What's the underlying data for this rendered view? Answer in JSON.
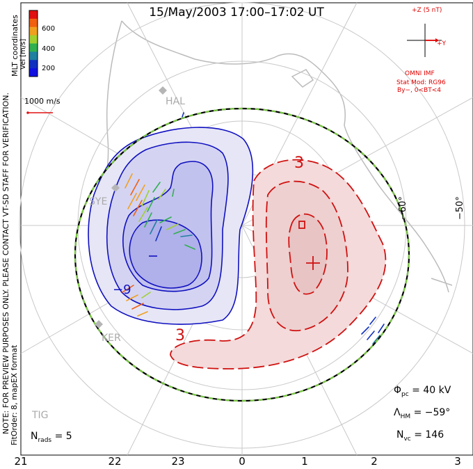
{
  "title": "15/May/2003 17:00–17:02 UT",
  "side_notes": {
    "preview": "NOTE: FOR PREVIEW PURPOSES ONLY. PLEASE CONTACT VT-SD STAFF FOR VERIFICATION.",
    "fitorder": "FitOrder: 8, mapEX format",
    "coords": "MLT coordinates"
  },
  "velocity_scale": {
    "label": "Vel [m/s]",
    "ticks": [
      "600",
      "400",
      "200"
    ],
    "colors": [
      "#e01010",
      "#f06010",
      "#f0a020",
      "#a0d030",
      "#30b050",
      "#2080a0",
      "#1030c0",
      "#1010e0"
    ],
    "reference": "1000 m/s"
  },
  "imf": {
    "z_label": "+Z (5 nT)",
    "y_label": "+Y",
    "source": "OMNI IMF",
    "model": "Stat Mod: RG96",
    "condition": "By−, 0<BT<4"
  },
  "stations": [
    "HAL",
    "SYE",
    "KER",
    "TIG"
  ],
  "latitude_labels": [
    "−60°",
    "−50°"
  ],
  "contour_labels": {
    "neg": "−9",
    "pos_top": "3",
    "pos_bottom": "3"
  },
  "stats": {
    "phi_pc": {
      "symbol": "Φ",
      "sub": "pc",
      "value": "= 40 kV"
    },
    "lambda_hm": {
      "symbol": "Λ",
      "sub": "HM",
      "value": "= −59°"
    },
    "n_vc": {
      "symbol": "N",
      "sub": "vc",
      "value": "= 146"
    },
    "n_rads": {
      "symbol": "N",
      "sub": "rads",
      "value": "= 5"
    }
  },
  "mlt_ticks": [
    "21",
    "22",
    "23",
    "0",
    "1",
    "2",
    "3"
  ],
  "colors": {
    "negative_cell": "#1010c0",
    "positive_cell": "#d01010",
    "hmb": "#7ac943",
    "grid": "#c8c8c8",
    "coast": "#bbbbbb"
  }
}
